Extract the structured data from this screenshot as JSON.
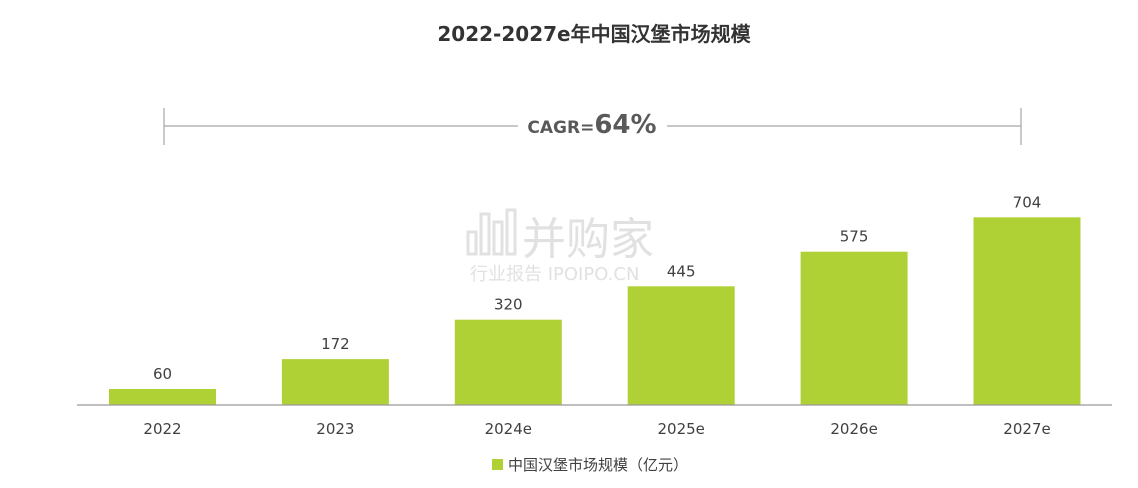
{
  "chart_data": {
    "type": "bar",
    "title": "2022-2027e年中国汉堡市场规模",
    "categories": [
      "2022",
      "2023",
      "2024e",
      "2025e",
      "2026e",
      "2027e"
    ],
    "series": [
      {
        "name": "中国汉堡市场规模（亿元）",
        "values": [
          60,
          172,
          320,
          445,
          575,
          704
        ],
        "color": "#b0d136"
      }
    ],
    "ylim": [
      0,
      720
    ],
    "grid": false,
    "legend_position": "bottom",
    "data_labels": true,
    "annotation": {
      "prefix": "CAGR",
      "equals": "=",
      "value": "64%"
    }
  },
  "watermark": {
    "main": "并购家",
    "sub": "行业报告 IPOIPO.CN"
  },
  "colors": {
    "bar": "#b0d136",
    "axis": "#999999",
    "bracket": "#a6a6a6",
    "text": "#404040"
  }
}
